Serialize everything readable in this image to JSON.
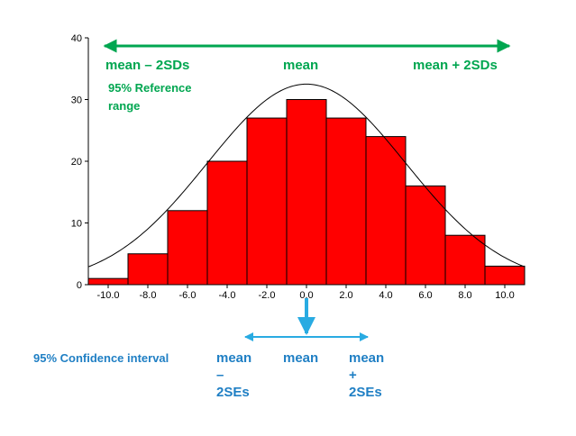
{
  "chart_data": {
    "type": "bar",
    "subtype": "histogram",
    "x_ticks": [
      "-10.0",
      "-8.0",
      "-6.0",
      "-4.0",
      "-2.0",
      "0.0",
      "2.0",
      "4.0",
      "6.0",
      "8.0",
      "10.0"
    ],
    "bin_centers": [
      -10,
      -8,
      -6,
      -4,
      -2,
      0,
      2,
      4,
      6,
      8,
      10
    ],
    "values": [
      1,
      5,
      12,
      20,
      27,
      30,
      27,
      24,
      16,
      8,
      3
    ],
    "y_ticks": [
      "0",
      "10",
      "20",
      "30",
      "40"
    ],
    "ylim": [
      0,
      40
    ],
    "xlim": [
      -11,
      11
    ],
    "bar_color": "#ff0000",
    "curve": {
      "type": "normal",
      "mean": 0,
      "sd": 5,
      "peak": 32.5,
      "color": "#000000"
    },
    "title": "",
    "xlabel": "",
    "ylabel": ""
  },
  "annotations": {
    "reference": {
      "color": "#00a650",
      "left": "mean – 2SDs",
      "center": "mean",
      "right": "mean + 2SDs",
      "range_label": "95% Reference range"
    },
    "confidence": {
      "color": "#29abe2",
      "text_color": "#1f7fc4",
      "label": "95% Confidence interval",
      "left_lines": [
        "mean",
        "–",
        "2SEs"
      ],
      "center": "mean",
      "right_lines": [
        "mean",
        "+",
        "2SEs"
      ]
    }
  }
}
